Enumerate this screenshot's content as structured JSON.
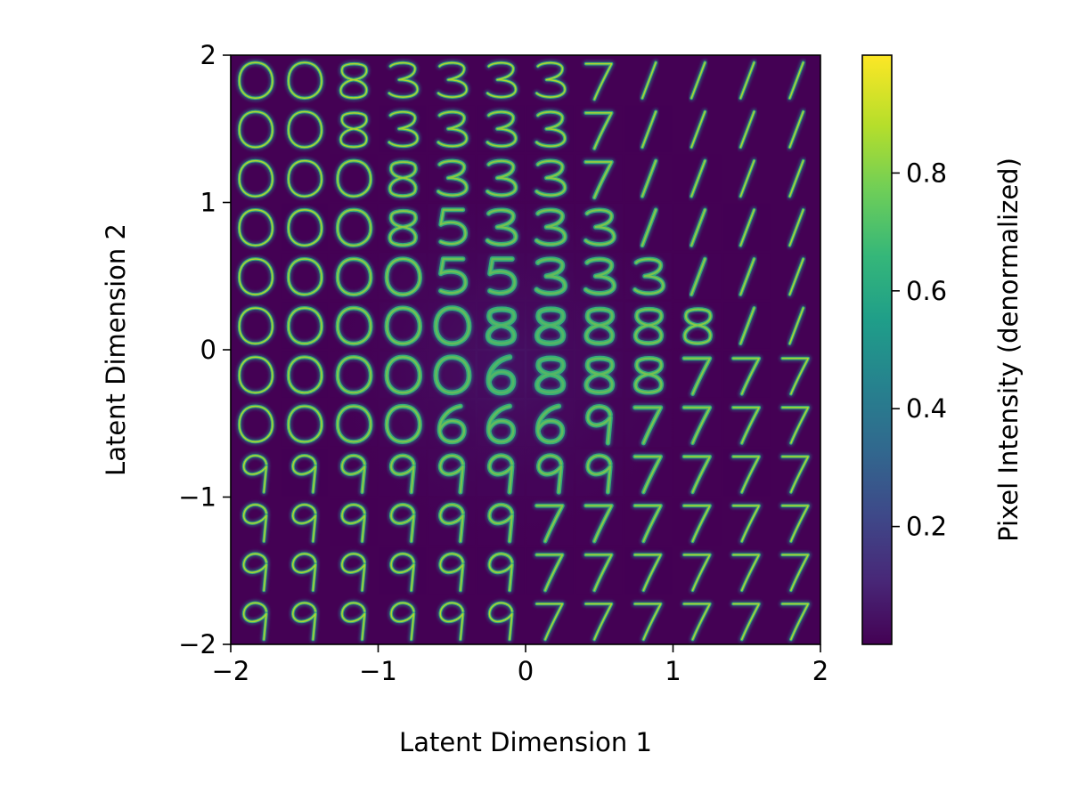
{
  "chart_data": {
    "type": "heatmap",
    "description_kind": "latent-space manifold of decoded digit images",
    "xlabel": "Latent Dimension 1",
    "ylabel": "Latent Dimension 2",
    "xlim": [
      -2,
      2
    ],
    "ylim": [
      -2,
      2
    ],
    "x_ticks": [
      -2,
      -1,
      0,
      1,
      2
    ],
    "y_ticks": [
      -2,
      -1,
      0,
      1,
      2
    ],
    "x_tick_labels": [
      "−2",
      "−1",
      "0",
      "1",
      "2"
    ],
    "y_tick_labels": [
      "−2",
      "−1",
      "0",
      "1",
      "2"
    ],
    "grid": false,
    "colormap": "viridis",
    "colorbar": {
      "label": "Pixel Intensity (denormalized)",
      "range": [
        0.0,
        1.0
      ],
      "ticks": [
        0.2,
        0.4,
        0.6,
        0.8
      ],
      "tick_labels": [
        "0.2",
        "0.4",
        "0.6",
        "0.8"
      ],
      "placement": "right"
    },
    "grid_cols": 12,
    "grid_rows": 12,
    "digit_grid": [
      [
        "0",
        "0",
        "8",
        "3",
        "3",
        "3",
        "3",
        "7",
        "1",
        "1",
        "1",
        "1"
      ],
      [
        "0",
        "0",
        "8",
        "3",
        "3",
        "3",
        "3",
        "7",
        "1",
        "1",
        "1",
        "1"
      ],
      [
        "0",
        "0",
        "0",
        "8",
        "3",
        "3",
        "3",
        "7",
        "1",
        "1",
        "1",
        "1"
      ],
      [
        "0",
        "0",
        "0",
        "8",
        "5",
        "3",
        "3",
        "3",
        "1",
        "1",
        "1",
        "1"
      ],
      [
        "0",
        "0",
        "0",
        "0",
        "5",
        "5",
        "3",
        "3",
        "3",
        "1",
        "1",
        "1"
      ],
      [
        "0",
        "0",
        "0",
        "0",
        "0",
        "8",
        "8",
        "8",
        "8",
        "8",
        "1",
        "1"
      ],
      [
        "0",
        "0",
        "0",
        "0",
        "0",
        "6",
        "8",
        "8",
        "8",
        "7",
        "7",
        "7"
      ],
      [
        "0",
        "0",
        "0",
        "0",
        "6",
        "6",
        "6",
        "9",
        "7",
        "7",
        "7",
        "7"
      ],
      [
        "9",
        "9",
        "9",
        "9",
        "9",
        "9",
        "9",
        "9",
        "7",
        "7",
        "7",
        "7"
      ],
      [
        "9",
        "9",
        "9",
        "9",
        "9",
        "9",
        "7",
        "7",
        "7",
        "7",
        "7",
        "7"
      ],
      [
        "9",
        "9",
        "9",
        "9",
        "9",
        "9",
        "7",
        "7",
        "7",
        "7",
        "7",
        "7"
      ],
      [
        "9",
        "9",
        "9",
        "9",
        "9",
        "9",
        "7",
        "7",
        "7",
        "7",
        "7",
        "7"
      ]
    ],
    "colors": {
      "background": "#440154",
      "viridis": [
        "#440154",
        "#482878",
        "#3e4989",
        "#31688e",
        "#26828e",
        "#1f9e89",
        "#35b779",
        "#6ece58",
        "#b5de2b",
        "#fde725"
      ]
    }
  }
}
